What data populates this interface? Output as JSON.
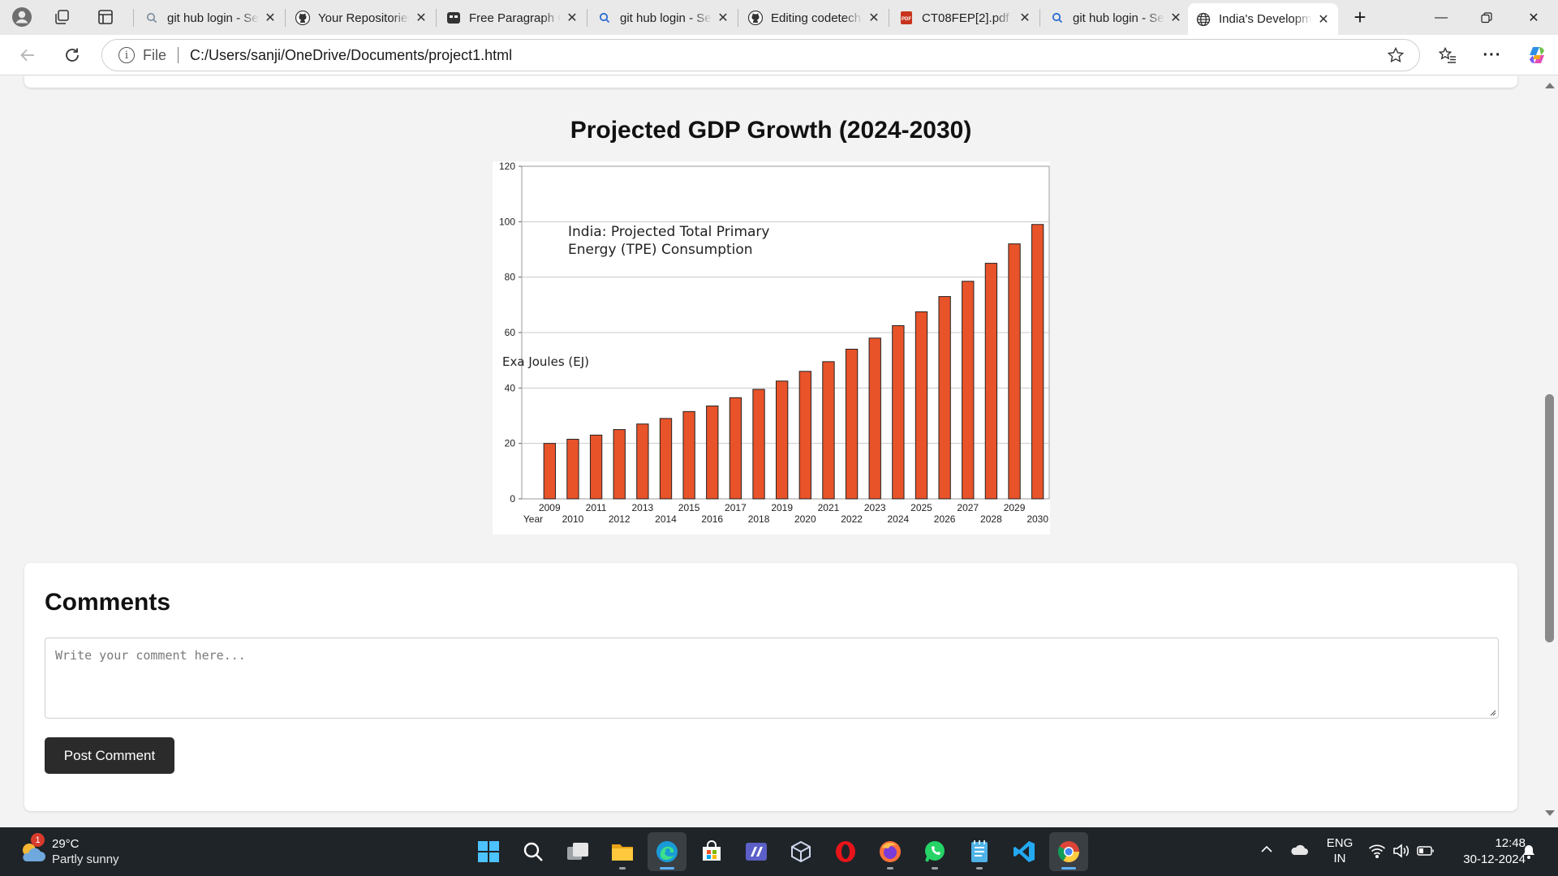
{
  "browser": {
    "tabs": [
      {
        "title": "git hub login - Search",
        "icon": "search-icon",
        "active": false
      },
      {
        "title": "Your Repositories",
        "icon": "github-icon",
        "active": false
      },
      {
        "title": "Free Paragraph Generator",
        "icon": "generator-icon",
        "active": false
      },
      {
        "title": "git hub login - Search",
        "icon": "search-icon",
        "active": false
      },
      {
        "title": "Editing codetech",
        "icon": "github-icon",
        "active": false
      },
      {
        "title": "CT08FEP[2].pdf",
        "icon": "pdf-icon",
        "active": false
      },
      {
        "title": "git hub login - Search",
        "icon": "search-icon",
        "active": false
      },
      {
        "title": "India's Development",
        "icon": "globe-icon",
        "active": true
      }
    ],
    "address": {
      "scheme_label": "File",
      "url": "C:/Users/sanji/OneDrive/Documents/project1.html"
    }
  },
  "page": {
    "chart_heading": "Projected GDP Growth (2024-2030)",
    "comments": {
      "heading": "Comments",
      "placeholder": "Write your comment here...",
      "button_label": "Post Comment"
    }
  },
  "chart_data": {
    "type": "bar",
    "title": "India: Projected Total Primary Energy (TPE) Consumption",
    "ylabel": "Exa Joules (EJ)",
    "xlabel": "Year",
    "ylim": [
      0,
      120
    ],
    "yticks": [
      0,
      20,
      40,
      60,
      80,
      100,
      120
    ],
    "grid": true,
    "bar_color": "#e8532a",
    "categories": [
      "2009",
      "2010",
      "2011",
      "2012",
      "2013",
      "2014",
      "2015",
      "2016",
      "2017",
      "2018",
      "2019",
      "2020",
      "2021",
      "2022",
      "2023",
      "2024",
      "2025",
      "2026",
      "2027",
      "2028",
      "2029",
      "2030"
    ],
    "values": [
      20,
      21.5,
      23,
      25,
      27,
      29,
      31.5,
      33.5,
      36.5,
      39.5,
      42.5,
      46,
      49.5,
      54,
      58,
      62.5,
      67.5,
      73,
      78.5,
      85,
      92,
      99
    ]
  },
  "taskbar": {
    "weather": {
      "badge": "1",
      "temp": "29°C",
      "condition": "Partly sunny"
    },
    "apps": [
      "windows-start-icon",
      "search-icon",
      "task-view-icon",
      "file-explorer-icon",
      "edge-icon",
      "store-icon",
      "teams-icon",
      "virtualbox-icon",
      "opera-icon",
      "firefox-icon",
      "whatsapp-icon",
      "notepad-icon",
      "vscode-icon",
      "chrome-icon"
    ],
    "language": {
      "line1": "ENG",
      "line2": "IN"
    },
    "time": "12:48",
    "date": "30-12-2024"
  }
}
